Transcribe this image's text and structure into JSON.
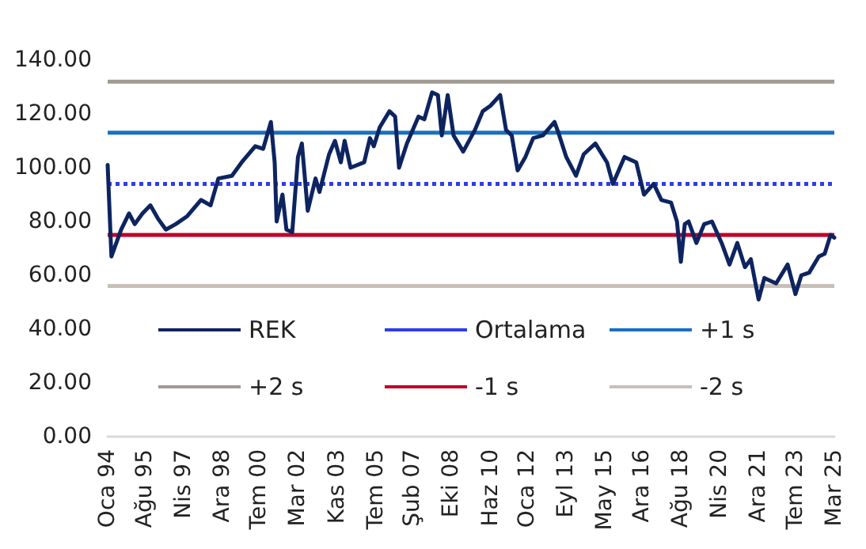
{
  "chart_data": {
    "type": "line",
    "x": [
      "1994-01",
      "1994-03",
      "1994-08",
      "1994-12",
      "1995-03",
      "1995-07",
      "1995-11",
      "1996-03",
      "1996-07",
      "1996-12",
      "1997-06",
      "1998-01",
      "1998-06",
      "1998-10",
      "1999-05",
      "1999-10",
      "2000-05",
      "2000-09",
      "2001-01",
      "2001-03",
      "2001-04",
      "2001-07",
      "2001-09",
      "2001-12",
      "2002-03",
      "2002-05",
      "2002-08",
      "2002-12",
      "2003-02",
      "2003-07",
      "2003-10",
      "2004-01",
      "2004-03",
      "2004-06",
      "2005-01",
      "2005-04",
      "2005-06",
      "2005-09",
      "2006-02",
      "2006-05",
      "2006-07",
      "2006-11",
      "2007-05",
      "2007-08",
      "2007-12",
      "2008-03",
      "2008-05",
      "2008-08",
      "2008-11",
      "2009-04",
      "2009-10",
      "2010-02",
      "2010-06",
      "2010-11",
      "2011-02",
      "2011-05",
      "2011-08",
      "2011-12",
      "2012-04",
      "2012-09",
      "2013-03",
      "2013-05",
      "2013-09",
      "2014-02",
      "2014-06",
      "2014-12",
      "2015-06",
      "2015-09",
      "2016-03",
      "2016-09",
      "2017-01",
      "2017-06",
      "2017-10",
      "2018-03",
      "2018-06",
      "2018-08",
      "2018-10",
      "2018-12",
      "2019-04",
      "2019-08",
      "2019-12",
      "2020-05",
      "2020-09",
      "2021-01",
      "2021-05",
      "2021-08",
      "2021-12",
      "2022-03",
      "2022-09",
      "2023-03",
      "2023-07",
      "2023-10",
      "2024-02",
      "2024-07",
      "2024-10",
      "2025-01",
      "2025-03"
    ],
    "series": [
      {
        "name": "REK",
        "color": "#0d2460",
        "values": [
          101,
          67,
          77,
          83,
          79,
          83,
          86,
          81,
          77,
          79,
          82,
          88,
          86,
          96,
          97,
          102,
          108,
          107,
          117,
          102,
          80,
          90,
          77,
          76,
          104,
          109,
          84,
          96,
          91,
          105,
          110,
          102,
          110,
          100,
          102,
          111,
          108,
          115,
          121,
          119,
          100,
          109,
          119,
          118,
          128,
          127,
          112,
          127,
          112,
          106,
          114,
          121,
          123,
          127,
          114,
          112,
          99,
          104,
          111,
          112,
          117,
          113,
          104,
          97,
          105,
          109,
          102,
          94,
          104,
          102,
          90,
          94,
          88,
          87,
          80,
          65,
          79,
          80,
          72,
          79,
          80,
          72,
          64,
          72,
          63,
          66,
          51,
          59,
          57,
          64,
          53,
          60,
          61,
          67,
          68,
          75,
          74
        ]
      }
    ],
    "ref_lines": [
      {
        "axis": "y",
        "value": 94,
        "label": "Ortalama",
        "color": "#2f3bf0",
        "line_style": "dotted"
      },
      {
        "axis": "y",
        "value": 113,
        "label": "+1 s",
        "color": "#1a6fc4"
      },
      {
        "axis": "y",
        "value": 132,
        "label": "+2 s",
        "color": "#a09a92"
      },
      {
        "axis": "y",
        "value": 75,
        "label": "-1 s",
        "color": "#c0002a"
      },
      {
        "axis": "y",
        "value": 56,
        "label": "-2 s",
        "color": "#c7c0b8"
      }
    ],
    "xlim": [
      "1994-01",
      "2025-03"
    ],
    "xticks": [
      {
        "value": "1994-01",
        "label": "Oca 94"
      },
      {
        "value": "1995-08",
        "label": "Ağu 95"
      },
      {
        "value": "1997-04",
        "label": "Nis 97"
      },
      {
        "value": "1998-12",
        "label": "Ara 98"
      },
      {
        "value": "2000-07",
        "label": "Tem 00"
      },
      {
        "value": "2002-03",
        "label": "Mar 02"
      },
      {
        "value": "2003-11",
        "label": "Kas 03"
      },
      {
        "value": "2005-07",
        "label": "Tem 05"
      },
      {
        "value": "2007-02",
        "label": "Şub 07"
      },
      {
        "value": "2008-10",
        "label": "Eki 08"
      },
      {
        "value": "2010-06",
        "label": "Haz 10"
      },
      {
        "value": "2012-01",
        "label": "Oca 12"
      },
      {
        "value": "2013-09",
        "label": "Eyl 13"
      },
      {
        "value": "2015-05",
        "label": "May 15"
      },
      {
        "value": "2016-12",
        "label": "Ara 16"
      },
      {
        "value": "2018-08",
        "label": "Ağu 18"
      },
      {
        "value": "2020-04",
        "label": "Nis 20"
      },
      {
        "value": "2021-12",
        "label": "Ara 21"
      },
      {
        "value": "2023-07",
        "label": "Tem 23"
      },
      {
        "value": "2025-03",
        "label": "Mar 25"
      }
    ],
    "ylim": [
      0,
      140
    ],
    "yticks": [
      {
        "value": 0,
        "label": "0.00"
      },
      {
        "value": 20,
        "label": "20.00"
      },
      {
        "value": 40,
        "label": "40.00"
      },
      {
        "value": 60,
        "label": "60.00"
      },
      {
        "value": 80,
        "label": "80.00"
      },
      {
        "value": 100,
        "label": "100.00"
      },
      {
        "value": 120,
        "label": "120.00"
      },
      {
        "value": 140,
        "label": "140.00"
      }
    ],
    "grid": false,
    "legend": "bottom",
    "marker": "none",
    "line_style": "solid"
  }
}
